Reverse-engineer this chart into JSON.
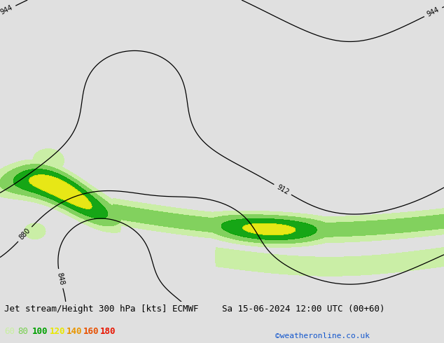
{
  "title": "Jet stream/Height 300 hPa [kts] ECMWF",
  "date_str": "Sa 15-06-2024 12:00 UTC (00+60)",
  "credit": "©weatheronline.co.uk",
  "legend_values": [
    "60",
    "80",
    "100",
    "120",
    "140",
    "160",
    "180"
  ],
  "legend_colors": [
    "#c8f0a0",
    "#78d050",
    "#00a000",
    "#e8e800",
    "#e89600",
    "#e85000",
    "#e81400"
  ],
  "bg_color": "#e0e0e0",
  "land_color": "#c8f0a0",
  "border_color": "#808080",
  "fill_colors": [
    "#c8f0a0",
    "#78d050",
    "#00a000",
    "#e8e800",
    "#e89600",
    "#e85000",
    "#e81400"
  ],
  "fill_levels": [
    60,
    80,
    100,
    120,
    140,
    160,
    180,
    220
  ],
  "contour_color": "#000000",
  "title_fontsize": 9,
  "legend_fontsize": 9,
  "lon_min": -110,
  "lon_max": 55,
  "lat_min": -72,
  "lat_max": 22
}
